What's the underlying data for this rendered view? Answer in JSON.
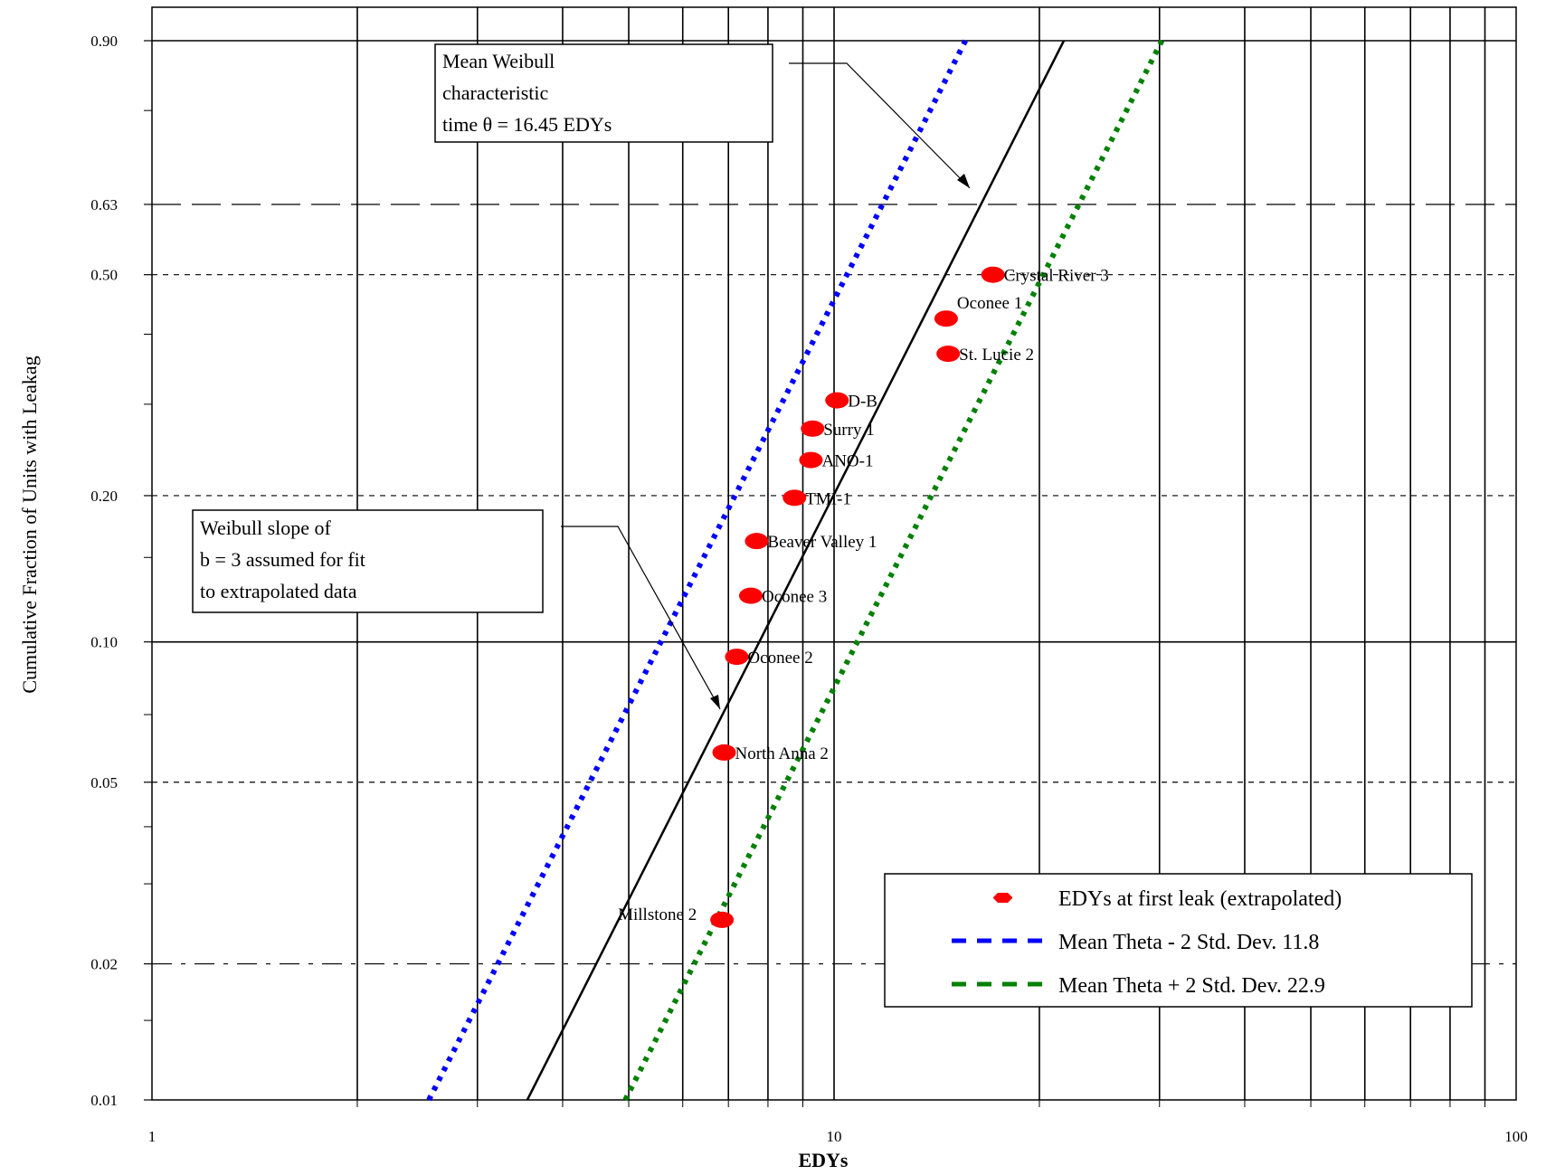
{
  "chart_data": {
    "type": "scatter",
    "xlabel": "EDYs",
    "ylabel": "Cumulative Fraction of Units with Leakag",
    "x_scale": "log",
    "y_scale": "weibull",
    "xlim": [
      1,
      100
    ],
    "ylim": [
      0.01,
      0.9
    ],
    "x_tick_labels": [
      "1",
      "10",
      "100"
    ],
    "y_tick_labels": [
      "0.01",
      "0.02",
      "0.05",
      "0.10",
      "0.20",
      "0.50",
      "0.63",
      "0.90"
    ],
    "grid": true,
    "legend_position": "bottom-right",
    "points": [
      {
        "label": "Millstone 2",
        "x": 6.85,
        "y": 0.025
      },
      {
        "label": "North Anna 2",
        "x": 6.9,
        "y": 0.058
      },
      {
        "label": "Oconee 2",
        "x": 7.2,
        "y": 0.093
      },
      {
        "label": "Oconee 3",
        "x": 7.55,
        "y": 0.125
      },
      {
        "label": "Beaver Valley 1",
        "x": 7.7,
        "y": 0.162
      },
      {
        "label": "TMI-1",
        "x": 8.75,
        "y": 0.198
      },
      {
        "label": "ANO-1",
        "x": 9.25,
        "y": 0.235
      },
      {
        "label": "Surry 1",
        "x": 9.3,
        "y": 0.27
      },
      {
        "label": "D-B",
        "x": 10.1,
        "y": 0.305
      },
      {
        "label": "St. Lucie 2",
        "x": 14.7,
        "y": 0.37
      },
      {
        "label": "Oconee 1",
        "x": 14.6,
        "y": 0.425
      },
      {
        "label": "Crystal River 3",
        "x": 17.1,
        "y": 0.5
      }
    ],
    "series": [
      {
        "name": "EDYs at first leak (extrapolated)",
        "type": "points",
        "color": "#ff0000"
      },
      {
        "name": "Mean Theta  - 2 Std. Dev. 11.8",
        "type": "line",
        "theta": 11.8,
        "beta": 3,
        "color": "#0000ff"
      },
      {
        "name": "Mean Theta  + 2 Std. Dev. 22.9",
        "type": "line",
        "theta": 22.9,
        "beta": 3,
        "color": "#008000"
      },
      {
        "type": "line",
        "theta": 16.45,
        "beta": 3,
        "color": "#000000"
      }
    ],
    "annotations": {
      "mean_theta": [
        "Mean Weibull",
        "characteristic",
        "time θ = 16.45 EDYs"
      ],
      "slope": [
        "Weibull slope of",
        "b = 3 assumed for fit",
        "to extrapolated data"
      ]
    }
  }
}
